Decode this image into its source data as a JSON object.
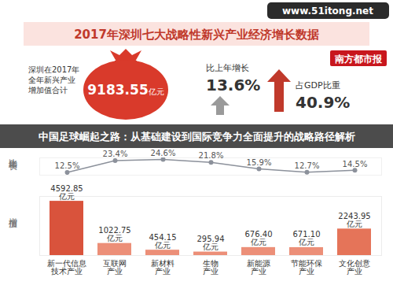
{
  "infographic": {
    "title": "2017年深圳七大战略性新兴产业经济增长数据",
    "banner": "中国足球崛起之路：从基础建设到国际竞争力全面提升的战略路径解析",
    "watermark": "www.51itong.net",
    "logo": "南方都市报",
    "total_label": [
      "深圳在2017年",
      "全年新兴产业",
      "增加值合计"
    ],
    "total_value": "9183.55",
    "total_unit": "亿元",
    "growth_label": "比上年增长",
    "growth_value": "13.6%",
    "share_label": "占GDP比重",
    "share_value": "40.9%"
  },
  "chart_data": {
    "type": "bar",
    "title": "2017年深圳七大战略性新兴产业经济增长数据",
    "categories": [
      "新一代信息\n技术产业",
      "互联网\n产业",
      "新材料\n产业",
      "生物\n产业",
      "新能源\n产业",
      "节能环保\n产业",
      "文化创意\n产业"
    ],
    "ylabel": "增加值",
    "y2label": "比上年增长",
    "series": [
      {
        "name": "增加值",
        "type": "bar",
        "values": [
          4592.85,
          1022.75,
          454.15,
          295.94,
          676.4,
          671.1,
          2243.95
        ],
        "value_labels": [
          "4592.85\n亿元",
          "1022.75\n亿元",
          "454.15\n亿元",
          "295.94\n亿元",
          "676.40\n亿元",
          "671.10\n亿元",
          "2243.95\n亿元"
        ],
        "colors": [
          "#d9533c",
          "#ec8f78",
          "#ec8f78",
          "#ec8f78",
          "#ec8f78",
          "#ec8f78",
          "#e57459"
        ]
      },
      {
        "name": "比上年增长",
        "type": "line",
        "axis": "y2",
        "color": "#8c919b",
        "marker": "circle",
        "values": [
          12.5,
          23.4,
          24.6,
          21.8,
          15.9,
          12.7,
          14.5
        ],
        "value_labels": [
          "12.5%",
          "23.4%",
          "24.6%",
          "21.8%",
          "15.9%",
          "12.7%",
          "14.5%"
        ]
      }
    ],
    "ylim": [
      0,
      5000
    ],
    "yticks": [],
    "y2lim": [
      10,
      26
    ],
    "y2ticks": [],
    "data_labels": true,
    "tick_labels": false
  }
}
